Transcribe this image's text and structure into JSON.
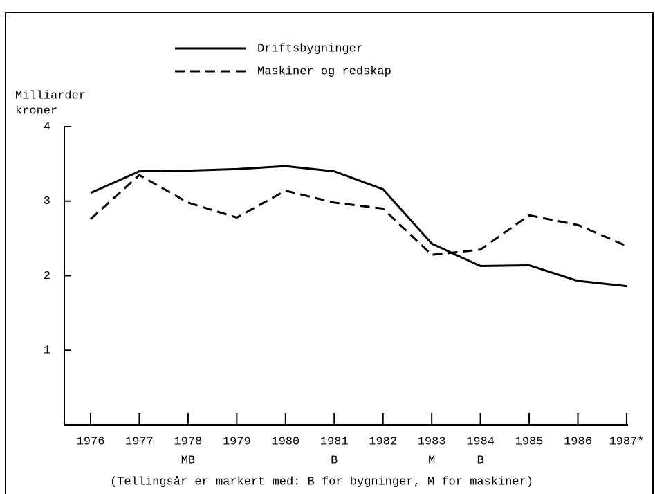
{
  "chart_data": {
    "type": "line",
    "ylabel_lines": [
      "Milliarder",
      "kroner"
    ],
    "categories": [
      "1976",
      "1977",
      "1978",
      "1979",
      "1980",
      "1981",
      "1982",
      "1983",
      "1984",
      "1985",
      "1986",
      "1987*"
    ],
    "census_marks": [
      null,
      null,
      "MB",
      null,
      null,
      "B",
      null,
      "M",
      "B",
      null,
      null,
      null
    ],
    "footnote": "(Tellingsår er markert med: B for bygninger, M for maskiner)",
    "series": [
      {
        "name": "Driftsbygninger",
        "color": "#000000",
        "line_style": "solid",
        "values": [
          3.11,
          3.4,
          3.41,
          3.43,
          3.47,
          3.4,
          3.16,
          2.43,
          2.13,
          2.14,
          1.93,
          1.86
        ]
      },
      {
        "name": "Maskiner og redskap",
        "color": "#000000",
        "line_style": "dashed",
        "values": [
          2.76,
          3.35,
          2.98,
          2.78,
          3.14,
          2.98,
          2.9,
          2.28,
          2.35,
          2.81,
          2.68,
          2.4
        ]
      }
    ],
    "ylim": [
      0,
      4
    ],
    "yticks": [
      1,
      2,
      3,
      4
    ],
    "grid": false
  }
}
